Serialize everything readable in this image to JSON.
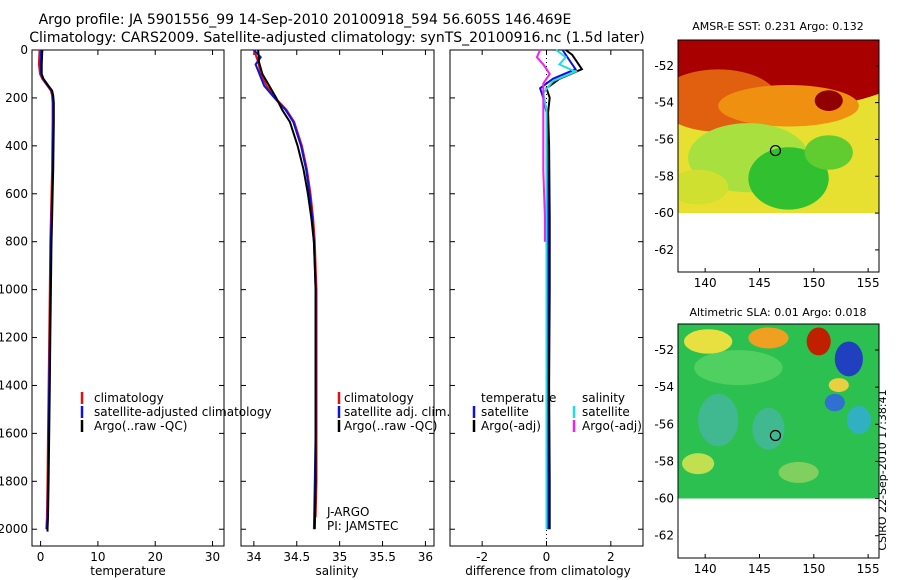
{
  "header": {
    "line1": "Argo profile: JA 5901556_99 14-Sep-2010 20100918_594 56.605S 146.469E",
    "line2": "Climatology: CARS2009. Satellite-adjusted climatology: synTS_20100916.nc (1.5d later)"
  },
  "credit": "CSIRO 22-Sep-2010 17:38:41",
  "colors": {
    "climatology": "#dd1111",
    "satellite": "#1111dd",
    "argo": "#000000",
    "sal_satellite": "#22dddd",
    "sal_argo": "#ee22ee",
    "map_land": "#ffffff",
    "marker": "#000000"
  },
  "chart_data": [
    {
      "type": "line",
      "id": "temperature",
      "xlabel": "temperature",
      "ylabel": "",
      "xlim": [
        -1.5,
        32
      ],
      "ylim": [
        2070,
        0
      ],
      "xticks": [
        "0",
        "10",
        "20",
        "30"
      ],
      "xtick_values": [
        0,
        10,
        20,
        30
      ],
      "yticks": [
        "0",
        "200",
        "400",
        "600",
        "800",
        "1000",
        "1200",
        "1400",
        "1600",
        "1800",
        "2000"
      ],
      "ytick_values": [
        0,
        200,
        400,
        600,
        800,
        1000,
        1200,
        1400,
        1600,
        1800,
        2000
      ],
      "legend": [
        "climatology",
        "satellite-adjusted climatology",
        "Argo(..raw -QC)"
      ],
      "series": [
        {
          "name": "climatology",
          "color_key": "climatology",
          "x": [
            -0.2,
            -0.3,
            -0.1,
            0.3,
            1.2,
            1.8,
            2.0,
            2.1,
            2.1,
            2.05,
            2.0,
            1.9,
            1.8,
            1.7,
            1.6,
            1.5,
            1.4,
            1.3,
            1.2,
            1.1,
            1.0
          ],
          "y": [
            0,
            60,
            100,
            120,
            150,
            170,
            190,
            220,
            300,
            400,
            500,
            600,
            700,
            800,
            1000,
            1200,
            1400,
            1600,
            1800,
            1950,
            2000
          ]
        },
        {
          "name": "satellite-adjusted climatology",
          "color_key": "satellite",
          "x": [
            0.1,
            0.0,
            0.1,
            0.4,
            1.3,
            1.9,
            2.1,
            2.2,
            2.2,
            2.15,
            2.1,
            2.0,
            1.9,
            1.8,
            1.7,
            1.6,
            1.5,
            1.4,
            1.3,
            1.2,
            1.1
          ],
          "y": [
            0,
            60,
            100,
            120,
            150,
            170,
            190,
            220,
            300,
            400,
            500,
            600,
            700,
            800,
            1000,
            1200,
            1400,
            1600,
            1800,
            1950,
            2000
          ]
        },
        {
          "name": "Argo(..raw -QC)",
          "color_key": "argo",
          "x": [
            0.3,
            0.2,
            0.2,
            0.5,
            1.4,
            2.0,
            2.2,
            2.3,
            2.3,
            2.25,
            2.2,
            2.1,
            2.0,
            1.9,
            1.8,
            1.7,
            1.6,
            1.5,
            1.4,
            1.3,
            1.2,
            1.2
          ],
          "y": [
            0,
            60,
            100,
            120,
            150,
            170,
            190,
            220,
            300,
            400,
            500,
            600,
            700,
            800,
            1000,
            1200,
            1400,
            1600,
            1800,
            1950,
            2000,
            2010
          ]
        }
      ]
    },
    {
      "type": "line",
      "id": "salinity",
      "xlabel": "salinity",
      "ylabel": "",
      "xlim": [
        33.85,
        36.1
      ],
      "ylim": [
        2070,
        0
      ],
      "xticks": [
        "34",
        "34.5",
        "35",
        "35.5",
        "36"
      ],
      "xtick_values": [
        34,
        34.5,
        35,
        35.5,
        36
      ],
      "legend": [
        "climatology",
        "satellite adj. clim.",
        "Argo(..raw -QC)"
      ],
      "annotation": [
        "J-ARGO",
        "PI: JAMSTEC"
      ],
      "series": [
        {
          "name": "climatology",
          "color_key": "climatology",
          "x": [
            34.0,
            34.05,
            34.08,
            34.15,
            34.25,
            34.38,
            34.47,
            34.56,
            34.62,
            34.66,
            34.69,
            34.71,
            34.72,
            34.73,
            34.73,
            34.73,
            34.73,
            34.73,
            34.72
          ],
          "y": [
            0,
            50,
            100,
            150,
            200,
            250,
            300,
            400,
            500,
            600,
            700,
            800,
            900,
            1000,
            1200,
            1400,
            1600,
            1800,
            1950
          ]
        },
        {
          "name": "satellite adj. clim.",
          "color_key": "satellite",
          "x": [
            34.0,
            34.08,
            34.02,
            34.12,
            34.24,
            34.37,
            34.46,
            34.55,
            34.61,
            34.65,
            34.68,
            34.7,
            34.71,
            34.72,
            34.72,
            34.72,
            34.72,
            34.71,
            34.7
          ],
          "y": [
            0,
            30,
            60,
            150,
            200,
            250,
            300,
            400,
            500,
            600,
            700,
            800,
            900,
            1000,
            1200,
            1400,
            1600,
            1800,
            2000
          ]
        },
        {
          "name": "Argo(..raw -QC)",
          "color_key": "argo",
          "x": [
            34.05,
            34.06,
            34.1,
            34.18,
            34.26,
            34.33,
            34.42,
            34.51,
            34.58,
            34.63,
            34.67,
            34.7,
            34.71,
            34.72,
            34.72,
            34.72,
            34.72,
            34.72,
            34.71
          ],
          "y": [
            0,
            50,
            100,
            150,
            200,
            250,
            300,
            400,
            500,
            600,
            700,
            800,
            900,
            1000,
            1200,
            1400,
            1600,
            1800,
            2000
          ]
        }
      ]
    },
    {
      "type": "line",
      "id": "difference",
      "xlabel": "difference from climatology",
      "ylabel": "",
      "xlim": [
        -3,
        3
      ],
      "ylim": [
        2070,
        0
      ],
      "xticks": [
        "-2",
        "0",
        "2"
      ],
      "xtick_values": [
        -2,
        0,
        2
      ],
      "legend_left_title": "temperature",
      "legend_right_title": "salinity",
      "legend_left": [
        "satellite",
        "Argo(-adj)"
      ],
      "legend_right": [
        "satellite",
        "Argo(-adj)"
      ],
      "series": [
        {
          "name": "temperature satellite",
          "color_key": "satellite",
          "x": [
            0.5,
            0.6,
            0.9,
            0.2,
            -0.2,
            -0.1,
            0.0,
            0.02,
            0.05,
            0.05,
            0.05,
            0.05,
            0.05
          ],
          "y": [
            0,
            20,
            80,
            120,
            160,
            200,
            260,
            400,
            700,
            1000,
            1400,
            1800,
            2000
          ]
        },
        {
          "name": "temperature Argo(-adj)",
          "color_key": "argo",
          "x": [
            0.6,
            0.8,
            1.1,
            0.4,
            0.0,
            0.1,
            0.05,
            0.08,
            0.1,
            0.1,
            0.08,
            0.1,
            0.1
          ],
          "y": [
            0,
            20,
            80,
            120,
            160,
            200,
            260,
            400,
            700,
            1000,
            1400,
            1800,
            2000
          ]
        },
        {
          "name": "salinity satellite",
          "color_key": "sal_satellite",
          "x": [
            0.3,
            0.6,
            0.4,
            0.9,
            0.2,
            -0.1,
            0.0,
            0.0,
            0.0,
            0.0,
            0.0,
            0.0,
            0.0
          ],
          "y": [
            0,
            30,
            60,
            90,
            130,
            180,
            250,
            400,
            700,
            1000,
            1400,
            1800,
            2000
          ]
        },
        {
          "name": "salinity Argo(-adj)",
          "color_key": "sal_argo",
          "x": [
            -0.2,
            -0.3,
            -0.1,
            0.1,
            -0.1,
            -0.1,
            -0.1,
            -0.1,
            -0.05,
            -0.05
          ],
          "y": [
            0,
            30,
            60,
            100,
            140,
            200,
            300,
            500,
            700,
            800
          ]
        }
      ]
    }
  ],
  "maps": [
    {
      "title": "AMSR-E SST: 0.231  Argo: 0.132",
      "xticks": [
        "140",
        "145",
        "150",
        "155"
      ],
      "xtick_values": [
        140,
        145,
        150,
        155
      ],
      "yticks": [
        "-52",
        "-54",
        "-56",
        "-58",
        "-60",
        "-62"
      ],
      "ytick_values": [
        -52,
        -54,
        -56,
        -58,
        -60,
        -62
      ],
      "xlim": [
        137.5,
        156
      ],
      "ylim": [
        -63.2,
        -50.6
      ],
      "data_lat_limit": -60,
      "marker": [
        146.469,
        -56.605
      ]
    },
    {
      "title": "Altimetric SLA: 0.01  Argo: 0.018",
      "xticks": [
        "140",
        "145",
        "150",
        "155"
      ],
      "xtick_values": [
        140,
        145,
        150,
        155
      ],
      "yticks": [
        "-52",
        "-54",
        "-56",
        "-58",
        "-60",
        "-62"
      ],
      "ytick_values": [
        -52,
        -54,
        -56,
        -58,
        -60,
        -62
      ],
      "xlim": [
        137.5,
        156
      ],
      "ylim": [
        -63.2,
        -50.6
      ],
      "data_lat_limit": -60,
      "marker": [
        146.469,
        -56.605
      ]
    }
  ]
}
